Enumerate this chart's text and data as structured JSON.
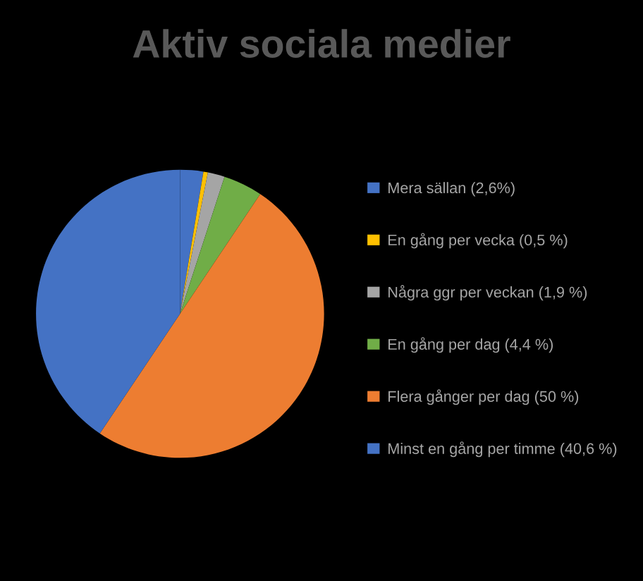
{
  "chart_data": {
    "type": "pie",
    "title": "Aktiv sociala medier",
    "categories": [
      "Mera sällan (2,6%)",
      "En gång per vecka (0,5 %)",
      "Några ggr per veckan (1,9 %)",
      "En gång per dag (4,4 %)",
      "Flera gånger per dag (50 %)",
      "Minst en gång per timme (40,6 %)"
    ],
    "values": [
      2.6,
      0.5,
      1.9,
      4.4,
      50,
      40.6
    ],
    "colors": [
      "#4472c4",
      "#ffc000",
      "#a5a5a5",
      "#70ad47",
      "#ed7d31",
      "#4472c4"
    ],
    "legend": "right"
  }
}
